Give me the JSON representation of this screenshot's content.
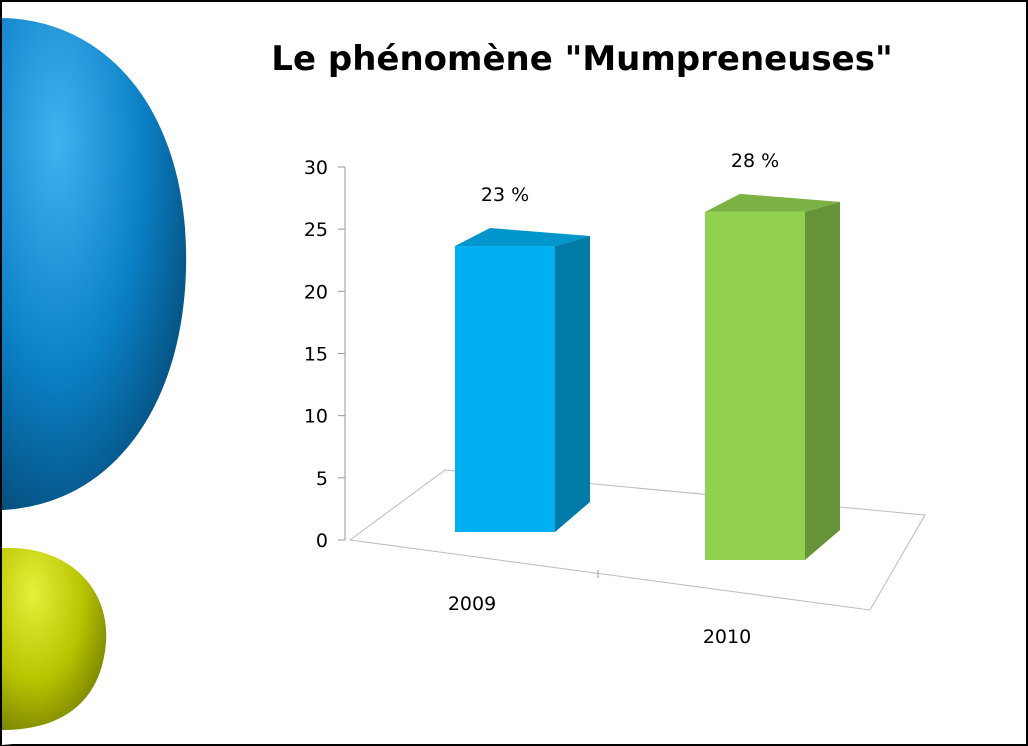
{
  "chart_data": {
    "type": "bar3d",
    "title": "Le phénomène \"Mumpreneuses\"",
    "categories": [
      "2009",
      "2010"
    ],
    "values": [
      23,
      28
    ],
    "value_labels": [
      "23 %",
      "28 %"
    ],
    "colors": [
      "#00b0f0",
      "#92d050"
    ],
    "ylim": [
      0,
      30
    ],
    "yticks": [
      0,
      5,
      10,
      15,
      20,
      25,
      30
    ]
  }
}
